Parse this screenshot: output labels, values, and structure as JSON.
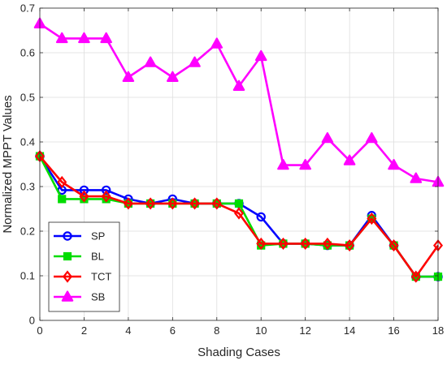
{
  "chart_data": {
    "type": "line",
    "title": "",
    "xlabel": "Shading Cases",
    "ylabel": "Normalized MPPT Values",
    "xlim": [
      0,
      18
    ],
    "ylim": [
      0,
      0.7
    ],
    "xticks": [
      0,
      2,
      4,
      6,
      8,
      10,
      12,
      14,
      16,
      18
    ],
    "yticks": [
      0,
      0.1,
      0.2,
      0.3,
      0.4,
      0.5,
      0.6,
      0.7
    ],
    "grid": true,
    "legend_position": "bottom-left",
    "x": [
      0,
      1,
      2,
      3,
      4,
      5,
      6,
      7,
      8,
      9,
      10,
      11,
      12,
      13,
      14,
      15,
      16,
      17,
      18
    ],
    "series": [
      {
        "name": "SP",
        "color": "#0000ff",
        "marker": "circle",
        "values": [
          0.368,
          0.292,
          0.292,
          0.292,
          0.272,
          0.262,
          0.272,
          0.262,
          0.262,
          0.262,
          0.232,
          0.172,
          0.172,
          0.168,
          0.168,
          0.235,
          0.168,
          0.098,
          0.098
        ]
      },
      {
        "name": "BL",
        "color": "#00dd00",
        "marker": "square",
        "values": [
          0.368,
          0.272,
          0.272,
          0.272,
          0.262,
          0.262,
          0.262,
          0.262,
          0.262,
          0.262,
          0.168,
          0.172,
          0.172,
          0.168,
          0.168,
          0.228,
          0.168,
          0.098,
          0.098
        ]
      },
      {
        "name": "TCT",
        "color": "#ff0000",
        "marker": "diamond",
        "values": [
          0.368,
          0.31,
          0.278,
          0.278,
          0.262,
          0.262,
          0.262,
          0.262,
          0.262,
          0.24,
          0.172,
          0.172,
          0.172,
          0.172,
          0.168,
          0.228,
          0.168,
          0.098,
          0.168
        ]
      },
      {
        "name": "SB",
        "color": "#ff00ff",
        "marker": "triangle",
        "values": [
          0.665,
          0.632,
          0.632,
          0.632,
          0.545,
          0.578,
          0.545,
          0.578,
          0.62,
          0.525,
          0.592,
          0.348,
          0.348,
          0.408,
          0.358,
          0.408,
          0.348,
          0.318,
          0.31
        ]
      }
    ]
  }
}
